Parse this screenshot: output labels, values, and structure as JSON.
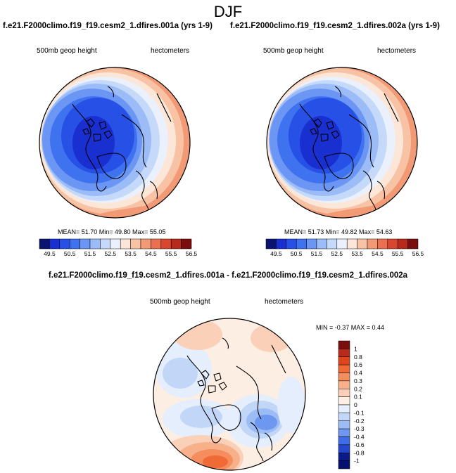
{
  "title": "DJF",
  "panels": [
    {
      "case": "f.e21.F2000climo.f19_f19.cesm2_1.dfires.001a (yrs 1-9)",
      "variable": "500mb geop height",
      "units": "hectometers",
      "stats": {
        "mean": "51.70",
        "min": "49.80",
        "max": "55.05"
      },
      "stats_text": "MEAN=  51.70  Min=  49.80  Max=  55.05"
    },
    {
      "case": "f.e21.F2000climo.f19_f19.cesm2_1.dfires.002a (yrs 1-9)",
      "variable": "500mb geop height",
      "units": "hectometers",
      "stats": {
        "mean": "51.73",
        "min": "49.82",
        "max": "54.63"
      },
      "stats_text": "MEAN=  51.73  Min=  49.82  Max=  54.63"
    }
  ],
  "difference": {
    "title": "f.e21.F2000climo.f19_f19.cesm2_1.dfires.001a - f.e21.F2000climo.f19_f19.cesm2_1.dfires.002a",
    "variable": "500mb geop height",
    "units": "hectometers",
    "stats": {
      "min": "-0.37",
      "max": "0.44"
    },
    "stats_text": "MIN =  -0.37 MAX =   0.44"
  },
  "chart_data": [
    {
      "type": "heatmap",
      "projection": "north polar stereographic",
      "colorbar": {
        "orientation": "horizontal",
        "levels": [
          49.5,
          50.0,
          50.5,
          51.0,
          51.5,
          52.0,
          52.5,
          53.0,
          53.5,
          54.0,
          54.5,
          55.0,
          55.5,
          56.0,
          56.5
        ],
        "tick_labels": [
          "49.5",
          "50.5",
          "51.5",
          "52.5",
          "53.5",
          "54.5",
          "55.5",
          "56.5"
        ],
        "colors": [
          "#0a1470",
          "#1a2fd0",
          "#2650e6",
          "#3f72ef",
          "#6b96f4",
          "#9cbcf7",
          "#c5d9fa",
          "#eaf1fd",
          "#fce6d8",
          "#f8c2a4",
          "#f29a75",
          "#e9714f",
          "#d84630",
          "#b82a1b",
          "#7a0d0d"
        ]
      },
      "stats": {
        "mean": 51.7,
        "min": 49.8,
        "max": 55.05
      }
    },
    {
      "type": "heatmap",
      "projection": "north polar stereographic",
      "colorbar": {
        "orientation": "horizontal",
        "levels": [
          49.5,
          50.0,
          50.5,
          51.0,
          51.5,
          52.0,
          52.5,
          53.0,
          53.5,
          54.0,
          54.5,
          55.0,
          55.5,
          56.0,
          56.5
        ],
        "tick_labels": [
          "49.5",
          "50.5",
          "51.5",
          "52.5",
          "53.5",
          "54.5",
          "55.5",
          "56.5"
        ],
        "colors": [
          "#0a1470",
          "#1a2fd0",
          "#2650e6",
          "#3f72ef",
          "#6b96f4",
          "#9cbcf7",
          "#c5d9fa",
          "#eaf1fd",
          "#fce6d8",
          "#f8c2a4",
          "#f29a75",
          "#e9714f",
          "#d84630",
          "#b82a1b",
          "#7a0d0d"
        ]
      },
      "stats": {
        "mean": 51.73,
        "min": 49.82,
        "max": 54.63
      }
    },
    {
      "type": "heatmap",
      "projection": "north polar stereographic",
      "colorbar": {
        "orientation": "vertical",
        "tick_labels": [
          "1",
          "0.8",
          "0.6",
          "0.4",
          "0.3",
          "0.2",
          "0.1",
          "0",
          "-0.1",
          "-0.2",
          "-0.3",
          "-0.4",
          "-0.6",
          "-0.8",
          "-1"
        ],
        "colors": [
          "#7a0d0d",
          "#b82a1b",
          "#e0441c",
          "#ef6a35",
          "#f58e5c",
          "#f8b08a",
          "#fbd0b8",
          "#fdeee3",
          "#e4eefc",
          "#c2d7f8",
          "#9cbcf5",
          "#6e97ef",
          "#3e6ee6",
          "#2348cc",
          "#0a1a8a",
          "#051070"
        ]
      },
      "stats": {
        "min": -0.37,
        "max": 0.44
      }
    }
  ]
}
